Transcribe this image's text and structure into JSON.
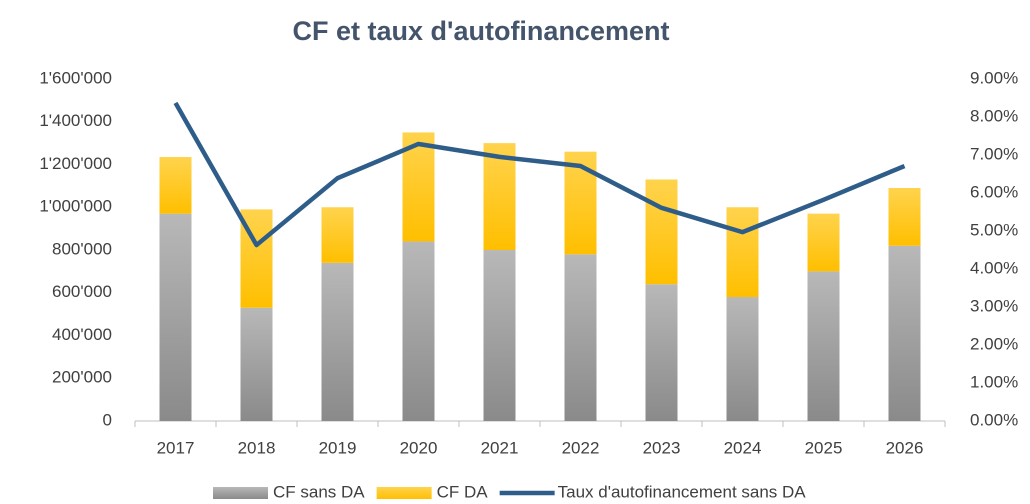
{
  "chart_data": {
    "type": "bar_line",
    "title": "CF et taux d'autofinancement",
    "categories": [
      "2017",
      "2018",
      "2019",
      "2020",
      "2021",
      "2022",
      "2023",
      "2024",
      "2025",
      "2026"
    ],
    "series": [
      {
        "name": "CF sans DA",
        "color": "#a6a6a6",
        "stacked": true,
        "values": [
          970000,
          530000,
          740000,
          840000,
          800000,
          780000,
          640000,
          580000,
          700000,
          820000
        ]
      },
      {
        "name": "CF DA",
        "color": "#ffc000",
        "stacked": true,
        "values": [
          265000,
          460000,
          260000,
          510000,
          500000,
          480000,
          490000,
          420000,
          270000,
          270000
        ]
      },
      {
        "name": "Taux d'autofinancement sans DA",
        "color": "#2f5d8a",
        "axis": "y2",
        "type": "line",
        "values": [
          8.37,
          4.63,
          6.39,
          7.29,
          6.95,
          6.71,
          5.61,
          4.97,
          5.82,
          6.71
        ]
      }
    ],
    "ylim": [
      0,
      1600000
    ],
    "yticks": [
      0,
      {
        "value": 200000,
        "label": "200'000"
      },
      {
        "value": 400000,
        "label": "400'000"
      },
      {
        "value": 600000,
        "label": "600'000"
      },
      {
        "value": 800000,
        "label": "800'000"
      },
      {
        "value": 1000000,
        "label": "1'000'000"
      },
      {
        "value": 1200000,
        "label": "1'200'000"
      },
      {
        "value": 1400000,
        "label": "1'400'000"
      },
      {
        "value": 1600000,
        "label": "1'600'000"
      }
    ],
    "y2lim": [
      0,
      9
    ],
    "y2ticks": [
      {
        "value": 0,
        "label": "0.00%"
      },
      {
        "value": 1,
        "label": "1.00%"
      },
      {
        "value": 2,
        "label": "2.00%"
      },
      {
        "value": 3,
        "label": "3.00%"
      },
      {
        "value": 4,
        "label": "4.00%"
      },
      {
        "value": 5,
        "label": "5.00%"
      },
      {
        "value": 6,
        "label": "6.00%"
      },
      {
        "value": 7,
        "label": "7.00%"
      },
      {
        "value": 8,
        "label": "8.00%"
      },
      {
        "value": 9,
        "label": "9.00%"
      }
    ],
    "grid": false,
    "legend": "bottom"
  }
}
